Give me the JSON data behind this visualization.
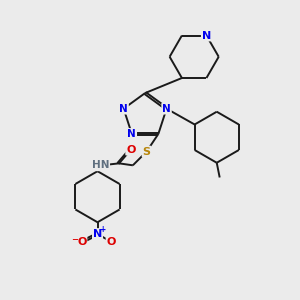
{
  "background_color": "#ebebeb",
  "bond_color": "#1a1a1a",
  "atom_colors": {
    "N": "#0000ee",
    "O": "#dd0000",
    "S": "#b8860b",
    "H": "#607080"
  },
  "figsize": [
    3.0,
    3.0
  ],
  "dpi": 100
}
